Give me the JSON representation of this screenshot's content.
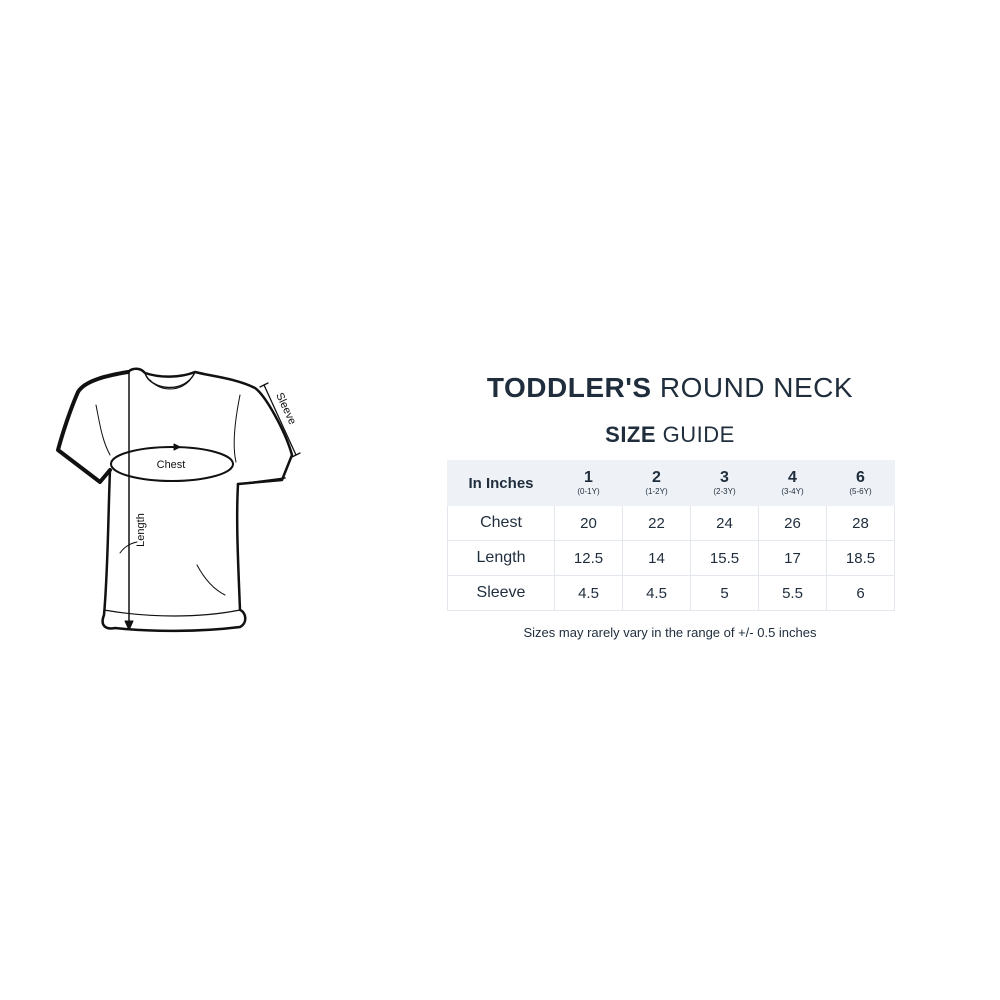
{
  "title": {
    "bold": "TODDLER'S",
    "rest": "ROUND NECK"
  },
  "subtitle": {
    "bold": "SIZE",
    "rest": "GUIDE"
  },
  "diagram_labels": {
    "chest": "Chest",
    "length": "Length",
    "sleeve": "Sleeve"
  },
  "table": {
    "corner": "In Inches",
    "columns": [
      {
        "size": "1",
        "age": "(0-1Y)"
      },
      {
        "size": "2",
        "age": "(1-2Y)"
      },
      {
        "size": "3",
        "age": "(2-3Y)"
      },
      {
        "size": "4",
        "age": "(3-4Y)"
      },
      {
        "size": "6",
        "age": "(5-6Y)"
      }
    ],
    "rows": [
      {
        "label": "Chest",
        "values": [
          "20",
          "22",
          "24",
          "26",
          "28"
        ]
      },
      {
        "label": "Length",
        "values": [
          "12.5",
          "14",
          "15.5",
          "17",
          "18.5"
        ]
      },
      {
        "label": "Sleeve",
        "values": [
          "4.5",
          "4.5",
          "5",
          "5.5",
          "6"
        ]
      }
    ]
  },
  "note": "Sizes may rarely vary in the range of +/- 0.5 inches",
  "colors": {
    "text": "#1f2d3d",
    "header_bg": "#eef2f6",
    "border": "#e3e8ee"
  }
}
